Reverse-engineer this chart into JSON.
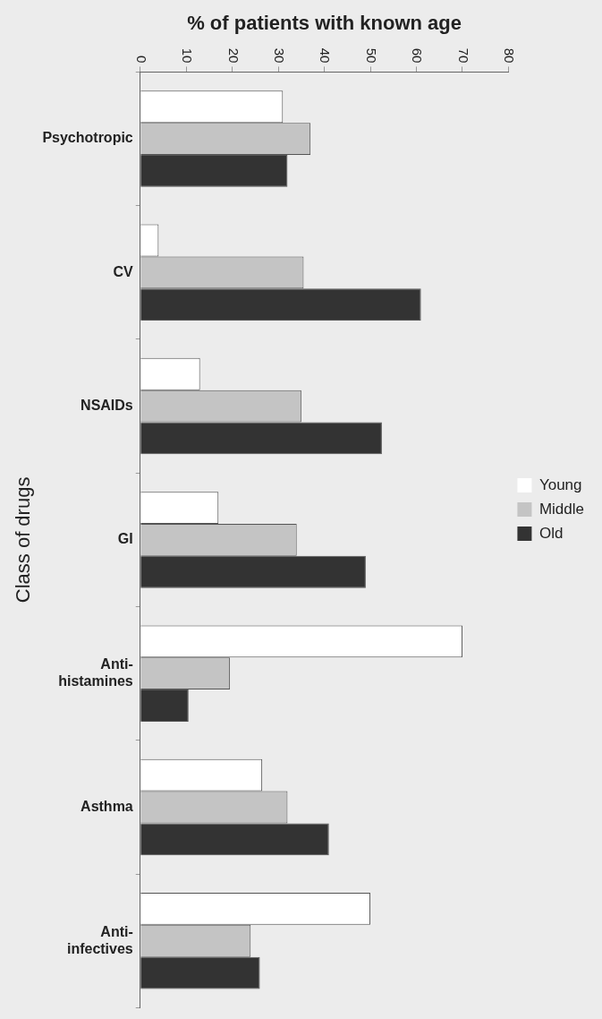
{
  "chart_data": {
    "type": "bar",
    "orientation": "horizontal",
    "xlabel": "% of patients with known age",
    "ylabel": "Class of drugs",
    "categories": [
      "Psychotropic",
      "CV",
      "NSAIDs",
      "GI",
      "Anti-\nhistamines",
      "Asthma",
      "Anti-\ninfectives"
    ],
    "series": [
      {
        "name": "Young",
        "color": "#ffffff",
        "values": [
          31,
          4,
          13,
          17,
          70,
          26.5,
          50
        ]
      },
      {
        "name": "Middle",
        "color": "#c4c4c4",
        "values": [
          37,
          35.5,
          35,
          34,
          19.5,
          32,
          24
        ]
      },
      {
        "name": "Old",
        "color": "#333333",
        "values": [
          32,
          61,
          52.5,
          49,
          10.5,
          41,
          26
        ]
      }
    ],
    "xlim": [
      0,
      80
    ],
    "xticks": [
      0,
      10,
      20,
      30,
      40,
      50,
      60,
      70,
      80
    ],
    "grid": false,
    "legend": "right"
  }
}
